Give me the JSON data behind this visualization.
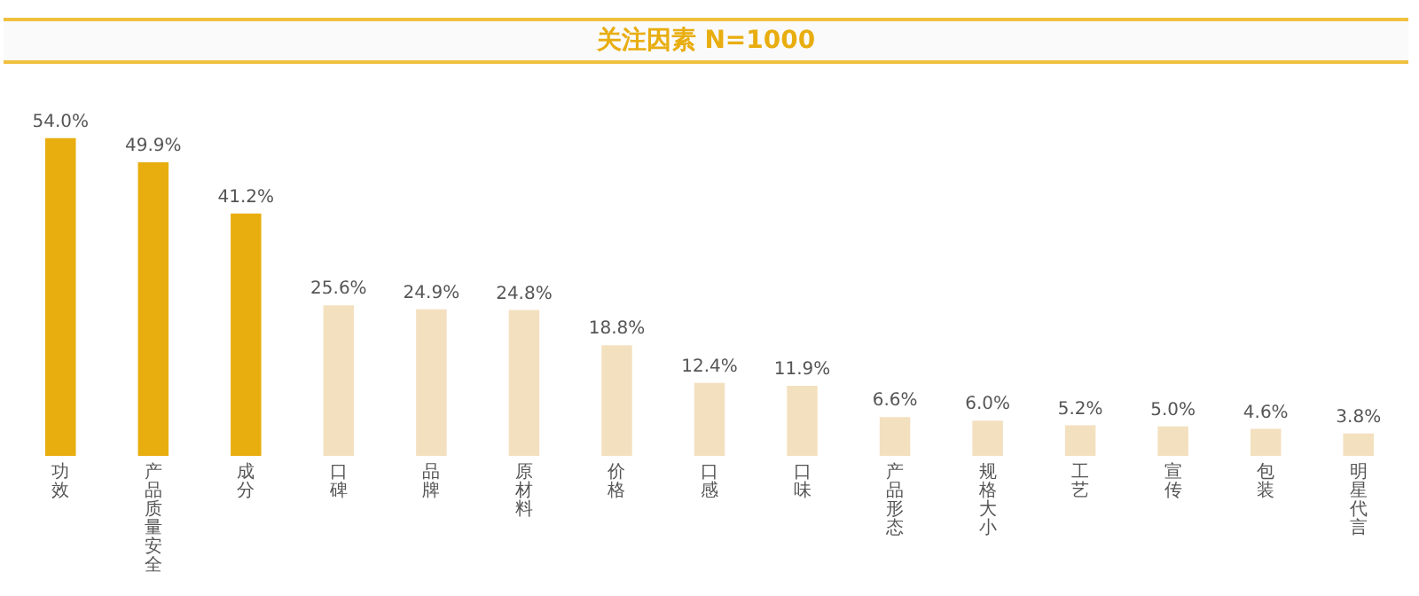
{
  "chart_data": {
    "type": "bar",
    "title": "关注因素 N=1000",
    "categories": [
      "功效",
      "产品质量安全",
      "成分",
      "口碑",
      "品牌",
      "原材料",
      "价格",
      "口感",
      "口味",
      "产品形态",
      "规格大小",
      "工艺",
      "宣传",
      "包装",
      "明星代言"
    ],
    "values": [
      54.0,
      49.9,
      41.2,
      25.6,
      24.9,
      24.8,
      18.8,
      12.4,
      11.9,
      6.6,
      6.0,
      5.2,
      5.0,
      4.6,
      3.8
    ],
    "value_labels": [
      "54.0%",
      "49.9%",
      "41.2%",
      "25.6%",
      "24.9%",
      "24.8%",
      "18.8%",
      "12.4%",
      "11.9%",
      "6.6%",
      "6.0%",
      "5.2%",
      "5.0%",
      "4.6%",
      "3.8%"
    ],
    "colors": [
      "#e8ad0f",
      "#e8ad0f",
      "#e8ad0f",
      "#f3e0bf",
      "#f3e0bf",
      "#f3e0bf",
      "#f3e0bf",
      "#f3e0bf",
      "#f3e0bf",
      "#f3e0bf",
      "#f3e0bf",
      "#f3e0bf",
      "#f3e0bf",
      "#f3e0bf",
      "#f3e0bf"
    ],
    "grid": false,
    "legend": false
  }
}
